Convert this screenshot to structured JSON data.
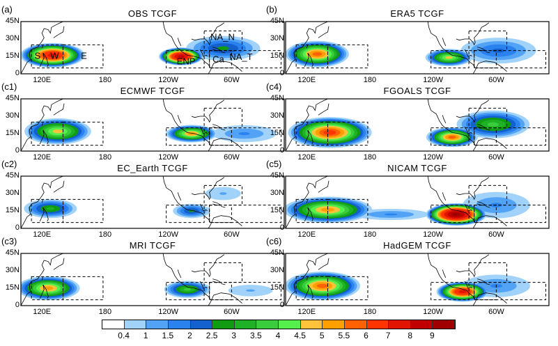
{
  "chart_data": {
    "type": "map-contour",
    "variable": "TCGF",
    "lon_range": [
      100,
      350
    ],
    "lat_range": [
      0,
      45
    ],
    "x_ticks": [
      "120E",
      "180",
      "120W",
      "60W"
    ],
    "y_ticks": [
      "45N",
      "30N",
      "15N",
      "0"
    ],
    "colorbar": {
      "levels": [
        "0.4",
        "1",
        "1.5",
        "2",
        "2.5",
        "3",
        "3.5",
        "4",
        "4.5",
        "5",
        "5.5",
        "6",
        "7",
        "8",
        "9"
      ],
      "level_values": [
        0.4,
        1,
        1.5,
        2,
        2.5,
        3,
        3.5,
        4,
        4.5,
        5,
        5.5,
        6,
        7,
        8,
        9
      ],
      "colors": [
        "#ffffff",
        "#a0d2fa",
        "#52a3f5",
        "#2a82ef",
        "#1360cf",
        "#0f9c13",
        "#20b226",
        "#3acd3b",
        "#55f04c",
        "#ffc23a",
        "#ffa000",
        "#ff6103",
        "#ff3400",
        "#e01400",
        "#c00000",
        "#a00000"
      ]
    },
    "regions": [
      {
        "name": "S",
        "lon": [
          110,
          140
        ],
        "lat": [
          5,
          25
        ]
      },
      {
        "name": "W",
        "lon": [
          110,
          140
        ],
        "lat": [
          5,
          25
        ]
      },
      {
        "name": "E",
        "lon": [
          140,
          178
        ],
        "lat": [
          5,
          25
        ]
      },
      {
        "name": "ENP",
        "lon": [
          238,
          274
        ],
        "lat": [
          5,
          20
        ]
      },
      {
        "name": "NA_N",
        "lon": [
          274,
          310
        ],
        "lat": [
          20,
          37
        ]
      },
      {
        "name": "Ca",
        "lon": [
          279,
          300
        ],
        "lat": [
          5,
          20
        ]
      },
      {
        "name": "NA_T",
        "lon": [
          279,
          347
        ],
        "lat": [
          5,
          20
        ]
      }
    ],
    "panels": [
      {
        "label": "(a)",
        "title": "OBS  TCGF",
        "centers": [
          {
            "lon": 130,
            "lat": 16,
            "rx": 32,
            "ry": 11,
            "peak": 7
          },
          {
            "lon": 252,
            "lat": 15,
            "rx": 22,
            "ry": 8,
            "peak": 8
          },
          {
            "lon": 292,
            "lat": 22,
            "rx": 40,
            "ry": 12,
            "peak": 2.5
          }
        ]
      },
      {
        "label": "(b)",
        "title": "ERA5  TCGF",
        "centers": [
          {
            "lon": 130,
            "lat": 17,
            "rx": 32,
            "ry": 12,
            "peak": 5.5
          },
          {
            "lon": 255,
            "lat": 14,
            "rx": 24,
            "ry": 8,
            "peak": 4.5
          },
          {
            "lon": 302,
            "lat": 20,
            "rx": 42,
            "ry": 13,
            "peak": 2
          }
        ]
      },
      {
        "label": "(c1)",
        "title": "ECMWF  TCGF",
        "centers": [
          {
            "lon": 135,
            "lat": 17,
            "rx": 34,
            "ry": 12,
            "peak": 4.5
          },
          {
            "lon": 262,
            "lat": 15,
            "rx": 26,
            "ry": 8,
            "peak": 5
          },
          {
            "lon": 312,
            "lat": 15,
            "rx": 38,
            "ry": 9,
            "peak": 1.5
          }
        ]
      },
      {
        "label": "(c4)",
        "title": "FGOALS  TCGF",
        "centers": [
          {
            "lon": 142,
            "lat": 16,
            "rx": 42,
            "ry": 14,
            "peak": 6
          },
          {
            "lon": 258,
            "lat": 12,
            "rx": 26,
            "ry": 9,
            "peak": 5.5
          },
          {
            "lon": 297,
            "lat": 23,
            "rx": 38,
            "ry": 13,
            "peak": 3.5
          }
        ]
      },
      {
        "label": "(c2)",
        "title": "EC_Earth  TCGF",
        "centers": [
          {
            "lon": 128,
            "lat": 17,
            "rx": 28,
            "ry": 9,
            "peak": 3
          },
          {
            "lon": 262,
            "lat": 15,
            "rx": 20,
            "ry": 7,
            "peak": 2.5
          },
          {
            "lon": 292,
            "lat": 30,
            "rx": 24,
            "ry": 8,
            "peak": 1
          }
        ]
      },
      {
        "label": "(c5)",
        "title": "NICAM  TCGF",
        "centers": [
          {
            "lon": 140,
            "lat": 16,
            "rx": 45,
            "ry": 12,
            "peak": 5
          },
          {
            "lon": 200,
            "lat": 12,
            "rx": 45,
            "ry": 6,
            "peak": 1.5
          },
          {
            "lon": 262,
            "lat": 12,
            "rx": 30,
            "ry": 10,
            "peak": 9
          },
          {
            "lon": 300,
            "lat": 20,
            "rx": 40,
            "ry": 14,
            "peak": 1.5
          }
        ]
      },
      {
        "label": "(c3)",
        "title": "MRI  TCGF",
        "centers": [
          {
            "lon": 126,
            "lat": 15,
            "rx": 32,
            "ry": 11,
            "peak": 5
          },
          {
            "lon": 258,
            "lat": 14,
            "rx": 24,
            "ry": 8,
            "peak": 3.5
          },
          {
            "lon": 318,
            "lat": 13,
            "rx": 30,
            "ry": 7,
            "peak": 1
          }
        ]
      },
      {
        "label": "(c6)",
        "title": "HadGEM  TCGF",
        "centers": [
          {
            "lon": 135,
            "lat": 17,
            "rx": 38,
            "ry": 13,
            "peak": 5.5
          },
          {
            "lon": 268,
            "lat": 12,
            "rx": 26,
            "ry": 9,
            "peak": 7
          },
          {
            "lon": 300,
            "lat": 17,
            "rx": 40,
            "ry": 12,
            "peak": 1.5
          }
        ]
      }
    ]
  }
}
